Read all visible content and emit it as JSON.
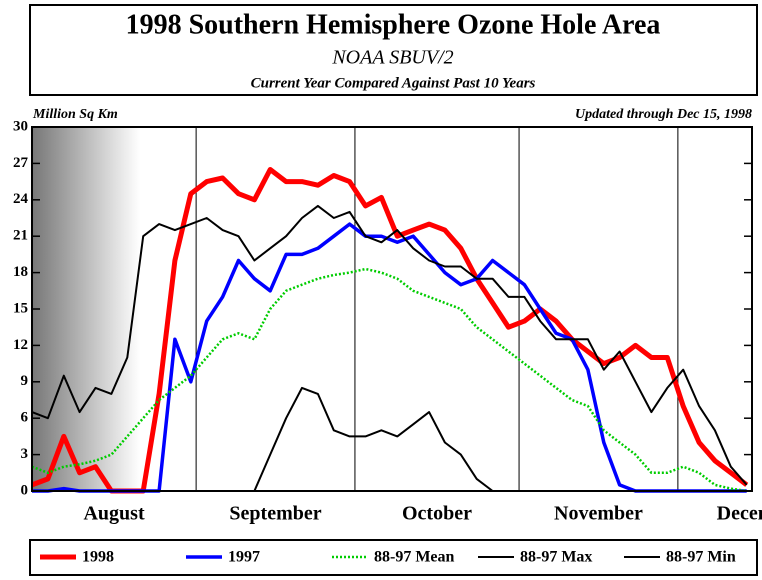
{
  "chart_data": {
    "type": "line",
    "title": "1998 Southern Hemisphere Ozone Hole Area",
    "subtitle": "NOAA SBUV/2",
    "caption": "Current Year Compared Against Past 10 Years",
    "y_label": "Million Sq Km",
    "note": "Updated through Dec 15, 1998",
    "x": [
      0,
      3,
      6,
      9,
      12,
      15,
      18,
      21,
      24,
      27,
      30,
      33,
      36,
      39,
      42,
      45,
      48,
      51,
      54,
      57,
      60,
      63,
      66,
      69,
      72,
      75,
      78,
      81,
      84,
      87,
      90,
      93,
      96,
      99,
      102,
      105,
      108,
      111,
      114,
      117,
      120,
      123,
      126,
      129,
      132,
      135
    ],
    "xlim": [
      0,
      136
    ],
    "xticks": [
      {
        "value": 15.5,
        "label": "August"
      },
      {
        "value": 46,
        "label": "September"
      },
      {
        "value": 76.5,
        "label": "October"
      },
      {
        "value": 107,
        "label": "November"
      },
      {
        "value": 137.5,
        "label": "December"
      }
    ],
    "x_gridlines": [
      31,
      61,
      92,
      122
    ],
    "ylim": [
      0,
      30
    ],
    "yticks": [
      0,
      3,
      6,
      9,
      12,
      15,
      18,
      21,
      24,
      27,
      30
    ],
    "series": [
      {
        "name": "1998",
        "color": "#ff0000",
        "style": "thick",
        "values": [
          0.5,
          1,
          4.5,
          1.5,
          2,
          0,
          0,
          0,
          8,
          19,
          24.5,
          25.5,
          25.8,
          24.5,
          24,
          26.5,
          25.5,
          25.5,
          25.2,
          26,
          25.5,
          23.5,
          24.2,
          21,
          21.5,
          22,
          21.5,
          20,
          17.5,
          15.5,
          13.5,
          14,
          15,
          14,
          12.5,
          11.5,
          10.5,
          11,
          12,
          11,
          11,
          7,
          4,
          2.5,
          1.5,
          0.5
        ]
      },
      {
        "name": "1997",
        "color": "#0000ff",
        "style": "medium",
        "values": [
          0,
          0,
          0.2,
          0,
          0,
          0,
          0,
          0,
          0,
          12.5,
          9,
          14,
          16,
          19,
          17.5,
          16.5,
          19.5,
          19.5,
          20,
          21,
          22,
          21,
          21,
          20.5,
          21,
          19.5,
          18,
          17,
          17.5,
          19,
          18,
          17,
          15,
          13,
          12.5,
          10,
          4,
          0.5,
          0,
          0,
          0,
          0,
          0,
          0,
          0,
          0
        ]
      },
      {
        "name": "88-97 Mean",
        "color": "#00cc00",
        "style": "dotted",
        "values": [
          2,
          1.5,
          2,
          2.2,
          2.5,
          3,
          4.5,
          6,
          7.5,
          8.5,
          9.5,
          11,
          12.5,
          13,
          12.5,
          15,
          16.5,
          17,
          17.5,
          17.8,
          18,
          18.3,
          18,
          17.5,
          16.5,
          16,
          15.5,
          15,
          13.5,
          12.5,
          11.5,
          10.5,
          9.5,
          8.5,
          7.5,
          7,
          5,
          4,
          3,
          1.5,
          1.5,
          2,
          1.5,
          0.5,
          0.2,
          0
        ]
      },
      {
        "name": "88-97 Max",
        "color": "#000000",
        "style": "thin",
        "values": [
          6.5,
          6,
          9.5,
          6.5,
          8.5,
          8,
          11,
          21,
          22,
          21.5,
          22,
          22.5,
          21.5,
          21,
          19,
          20,
          21,
          22.5,
          23.5,
          22.5,
          23,
          21,
          20.5,
          21.5,
          20,
          19,
          18.5,
          18.5,
          17.5,
          17.5,
          16,
          16,
          14,
          12.5,
          12.5,
          12.5,
          10,
          11.5,
          9,
          6.5,
          8.5,
          10,
          7,
          5,
          2,
          0.5
        ]
      },
      {
        "name": "88-97 Min",
        "color": "#000000",
        "style": "thin",
        "values": [
          null,
          null,
          null,
          null,
          null,
          null,
          null,
          null,
          null,
          null,
          null,
          null,
          null,
          null,
          0,
          3,
          6,
          8.5,
          8,
          5,
          4.5,
          4.5,
          5,
          4.5,
          5.5,
          6.5,
          4,
          3,
          1,
          0,
          null,
          null,
          null,
          null,
          null,
          null,
          null,
          null,
          null,
          null,
          null,
          null,
          null,
          null,
          null,
          null
        ]
      }
    ]
  }
}
